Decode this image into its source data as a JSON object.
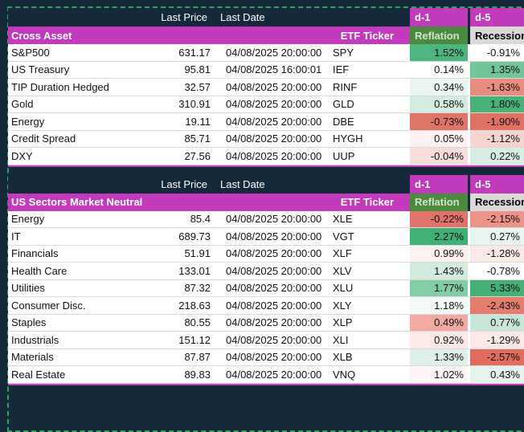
{
  "theme": {
    "background_navy": "#16293b",
    "magenta": "#c33bbd",
    "reflation_green_bg": "#4a8a3e",
    "recession_gray_bg": "#d9d9d9",
    "marquee_dash_green": "#33a35c",
    "row_white": "#ffffff",
    "grid_line": "#d9d9d9"
  },
  "columns": {
    "last_price": "Last Price",
    "last_date": "Last Date",
    "etf_ticker": "ETF Ticker",
    "d1": "d-1",
    "d5": "d-5",
    "reflation": "Reflation",
    "recession": "Recession"
  },
  "tables": [
    {
      "title": "Cross Asset",
      "rows": [
        {
          "name": "S&P500",
          "last_price": "631.17",
          "last_date": "04/08/2025 20:00:00",
          "ticker": "SPY",
          "d1": "1.52%",
          "d1_bg": "#4db67f",
          "d5": "-0.91%",
          "d5_bg": "#ffffff"
        },
        {
          "name": "US Treasury",
          "last_price": "95.81",
          "last_date": "04/08/2025 16:00:01",
          "ticker": "IEF",
          "d1": "0.14%",
          "d1_bg": "#ffffff",
          "d5": "1.35%",
          "d5_bg": "#72c598"
        },
        {
          "name": "TIP Duration Hedged",
          "last_price": "32.57",
          "last_date": "04/08/2025 20:00:00",
          "ticker": "RINF",
          "d1": "0.34%",
          "d1_bg": "#eaf5ef",
          "d5": "-1.63%",
          "d5_bg": "#e98c80"
        },
        {
          "name": "Gold",
          "last_price": "310.91",
          "last_date": "04/08/2025 20:00:00",
          "ticker": "GLD",
          "d1": "0.58%",
          "d1_bg": "#d3ecdf",
          "d5": "1.80%",
          "d5_bg": "#47b178"
        },
        {
          "name": "Energy",
          "last_price": "19.11",
          "last_date": "04/08/2025 20:00:00",
          "ticker": "DBE",
          "d1": "-0.73%",
          "d1_bg": "#e17468",
          "d5": "-1.90%",
          "d5_bg": "#e07163"
        },
        {
          "name": "Credit Spread",
          "last_price": "85.71",
          "last_date": "04/08/2025 20:00:00",
          "ticker": "HYGH",
          "d1": "0.05%",
          "d1_bg": "#fdf2f1",
          "d5": "-1.12%",
          "d5_bg": "#f7d4cf"
        },
        {
          "name": "DXY",
          "last_price": "27.56",
          "last_date": "04/08/2025 20:00:00",
          "ticker": "UUP",
          "d1": "-0.04%",
          "d1_bg": "#fadedb",
          "d5": "0.22%",
          "d5_bg": "#d8eee3"
        }
      ]
    },
    {
      "title": "US Sectors Market Neutral",
      "rows": [
        {
          "name": "Energy",
          "last_price": "85.4",
          "last_date": "04/08/2025 20:00:00",
          "ticker": "XLE",
          "d1": "-0.22%",
          "d1_bg": "#e1746a",
          "d5": "-2.15%",
          "d5_bg": "#ec9288"
        },
        {
          "name": "IT",
          "last_price": "689.73",
          "last_date": "04/08/2025 20:00:00",
          "ticker": "VGT",
          "d1": "2.27%",
          "d1_bg": "#41b075",
          "d5": "0.27%",
          "d5_bg": "#e9f5ef"
        },
        {
          "name": "Financials",
          "last_price": "51.91",
          "last_date": "04/08/2025 20:00:00",
          "ticker": "XLF",
          "d1": "0.99%",
          "d1_bg": "#fdf0ef",
          "d5": "-1.28%",
          "d5_bg": "#fce8e6"
        },
        {
          "name": "Health Care",
          "last_price": "133.01",
          "last_date": "04/08/2025 20:00:00",
          "ticker": "XLV",
          "d1": "1.43%",
          "d1_bg": "#d2ebdd",
          "d5": "-0.78%",
          "d5_bg": "#ffffff"
        },
        {
          "name": "Utilities",
          "last_price": "87.32",
          "last_date": "04/08/2025 20:00:00",
          "ticker": "XLU",
          "d1": "1.77%",
          "d1_bg": "#83cca4",
          "d5": "5.33%",
          "d5_bg": "#44b076"
        },
        {
          "name": "Consumer Disc.",
          "last_price": "218.63",
          "last_date": "04/08/2025 20:00:00",
          "ticker": "XLY",
          "d1": "1.18%",
          "d1_bg": "#f3faf6",
          "d5": "-2.43%",
          "d5_bg": "#e37d70"
        },
        {
          "name": "Staples",
          "last_price": "80.55",
          "last_date": "04/08/2025 20:00:00",
          "ticker": "XLP",
          "d1": "0.49%",
          "d1_bg": "#f2aba3",
          "d5": "0.77%",
          "d5_bg": "#c8e6d5"
        },
        {
          "name": "Industrials",
          "last_price": "151.12",
          "last_date": "04/08/2025 20:00:00",
          "ticker": "XLI",
          "d1": "0.92%",
          "d1_bg": "#fce9e7",
          "d5": "-1.29%",
          "d5_bg": "#fce9e7"
        },
        {
          "name": "Materials",
          "last_price": "87.87",
          "last_date": "04/08/2025 20:00:00",
          "ticker": "XLB",
          "d1": "1.33%",
          "d1_bg": "#def0e7",
          "d5": "-2.57%",
          "d5_bg": "#e06c5e"
        },
        {
          "name": "Real Estate",
          "last_price": "89.83",
          "last_date": "04/08/2025 20:00:00",
          "ticker": "VNQ",
          "d1": "1.02%",
          "d1_bg": "#fdf6f5",
          "d5": "0.43%",
          "d5_bg": "#e5f3ec"
        }
      ]
    }
  ]
}
